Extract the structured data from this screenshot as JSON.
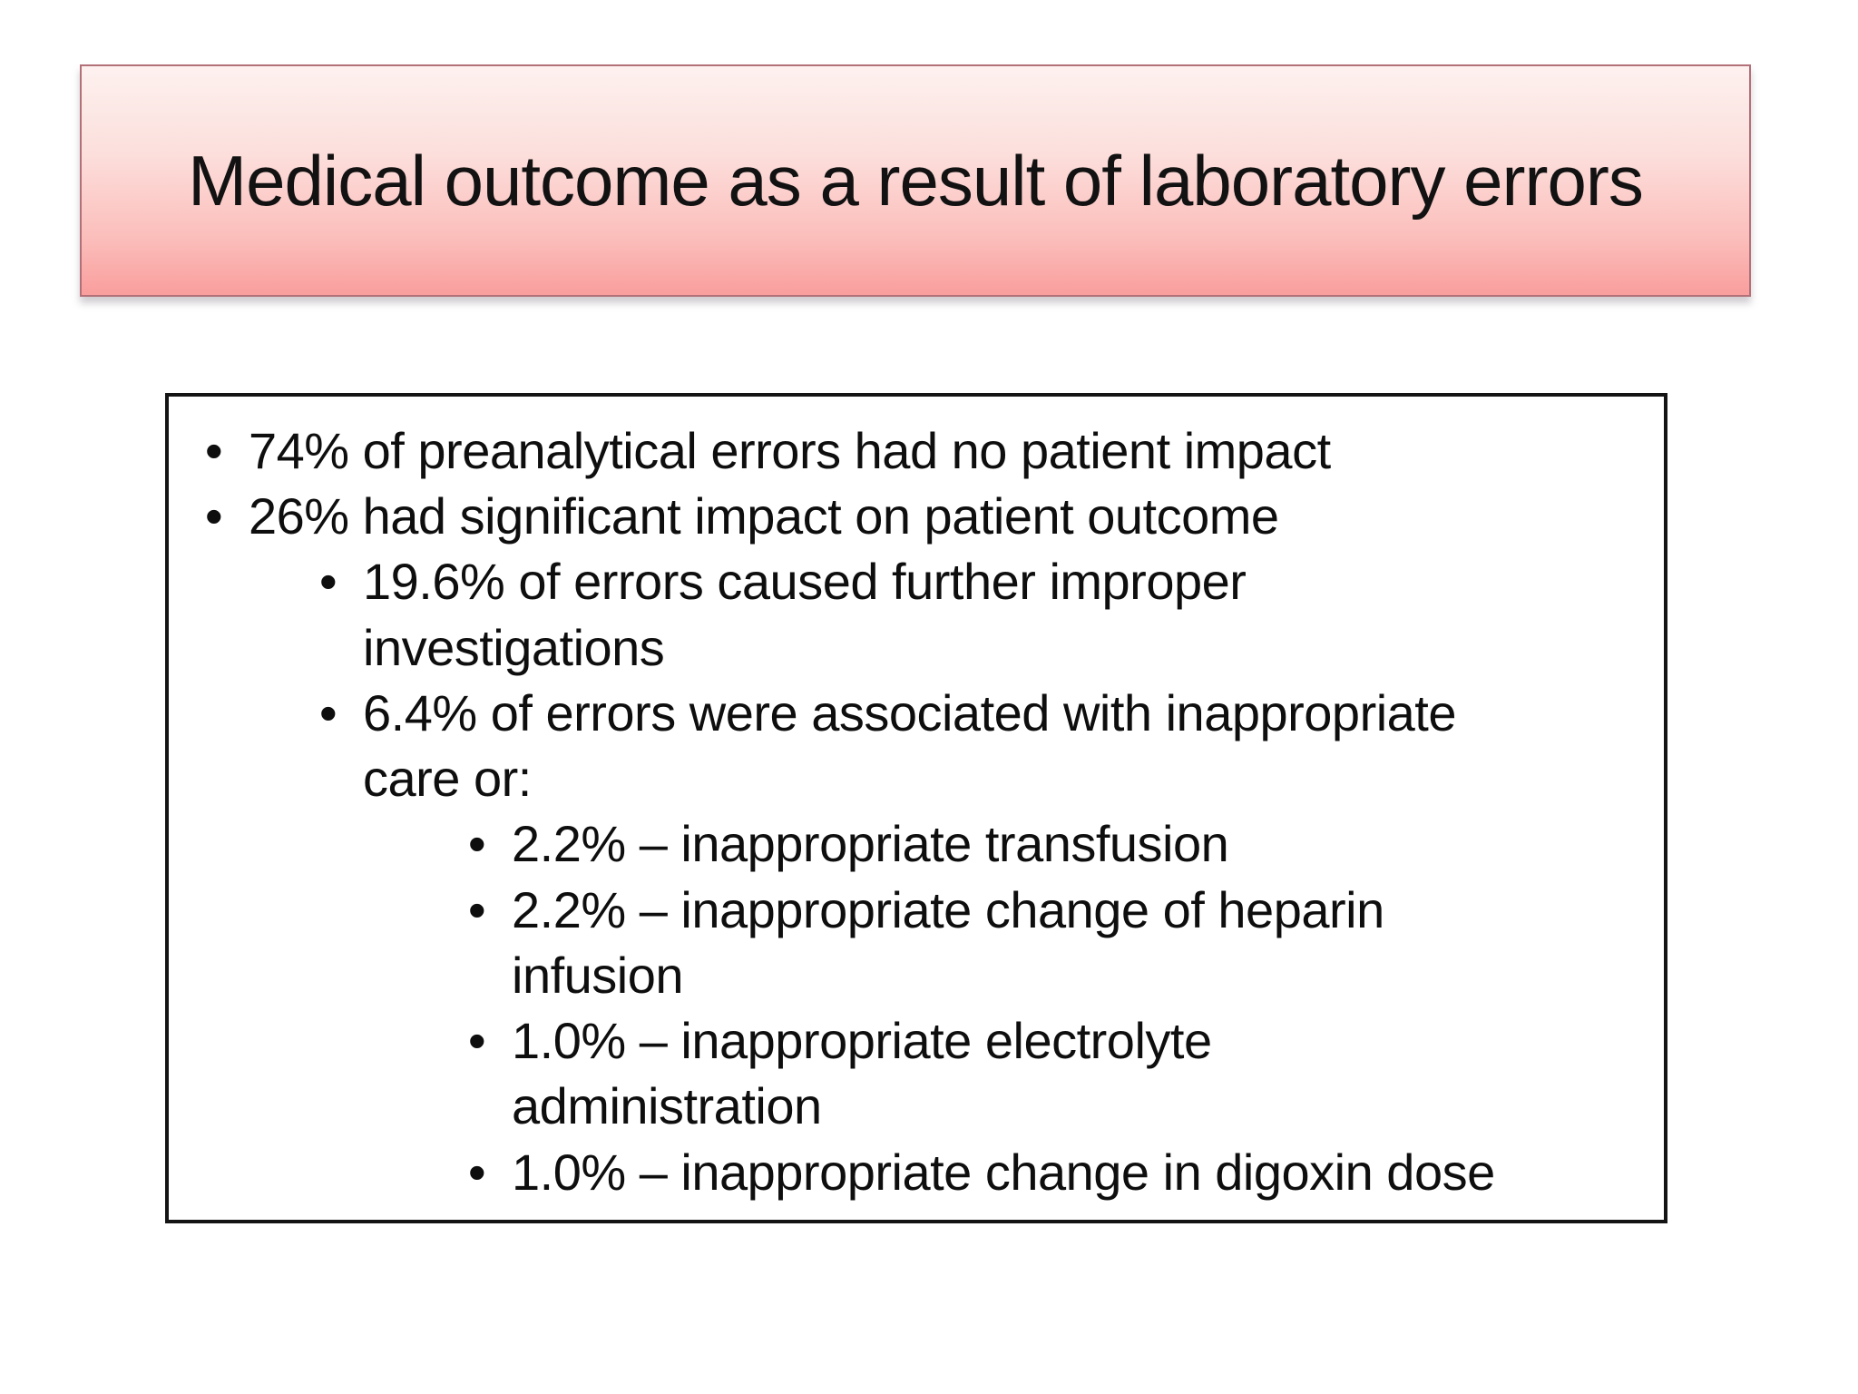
{
  "slide": {
    "title": "Medical outcome as a result of laboratory errors"
  },
  "content_box": {
    "bullet_glyph": "•",
    "items": [
      {
        "level": 1,
        "text": "74% of preanalytical errors had no patient impact"
      },
      {
        "level": 1,
        "text": "26% had significant impact on patient outcome"
      },
      {
        "level": 2,
        "text": "19.6% of errors caused further improper\ninvestigations"
      },
      {
        "level": 2,
        "text": "6.4% of errors were associated with inappropriate\ncare or:"
      },
      {
        "level": 3,
        "text": "2.2% – inappropriate transfusion"
      },
      {
        "level": 3,
        "text": "2.2% – inappropriate change of heparin\ninfusion"
      },
      {
        "level": 3,
        "text": "1.0% – inappropriate electrolyte\nadministration"
      },
      {
        "level": 3,
        "text": "1.0% – inappropriate change in digoxin dose"
      }
    ]
  },
  "colors": {
    "banner_gradient_top": "#fdf1ef",
    "banner_gradient_bottom": "#f99e9d",
    "banner_border": "#b27078",
    "box_border": "#141414",
    "text": "#0e0e0e",
    "background": "#ffffff"
  }
}
